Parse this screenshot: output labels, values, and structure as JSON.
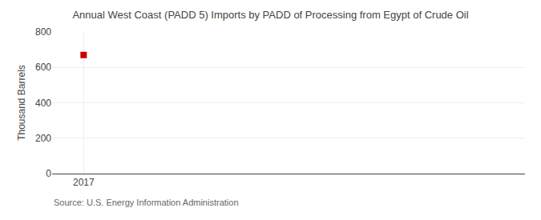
{
  "chart_data": {
    "type": "scatter",
    "title": "Annual West Coast (PADD 5) Imports by PADD of Processing from Egypt of Crude Oil",
    "ylabel": "Thousand Barrels",
    "annotations": [
      "Source: U.S. Energy Information Administration"
    ],
    "x": [
      2017
    ],
    "values": [
      670
    ],
    "color": "#cc0000",
    "marker": "square",
    "xlim": [
      2016.5,
      2024
    ],
    "xticks": [
      2017
    ],
    "ylim": [
      0,
      800
    ],
    "yticks": [
      0,
      200,
      400,
      600,
      800
    ],
    "grid": true
  }
}
